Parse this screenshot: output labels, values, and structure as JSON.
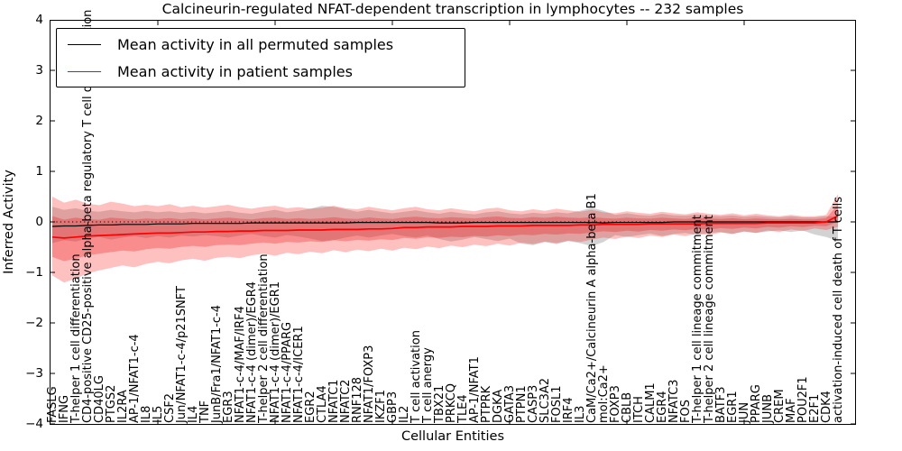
{
  "title": "Calcineurin-regulated NFAT-dependent transcription in lymphocytes -- 232 samples",
  "axes": {
    "ylabel": "Inferred Activity",
    "xlabel": "Cellular Entities",
    "ytick_labels": [
      "4",
      "3",
      "2",
      "1",
      "0",
      "−1",
      "−2",
      "−3",
      "−4"
    ]
  },
  "legend": {
    "entries": [
      {
        "label": "Mean activity in all permuted samples",
        "color": "#000000"
      },
      {
        "label": "Mean activity in patient samples",
        "color": "#ff0000"
      }
    ]
  },
  "chart_data": {
    "type": "line",
    "title": "Calcineurin-regulated NFAT-dependent transcription in lymphocytes -- 232 samples",
    "xlabel": "Cellular Entities",
    "ylabel": "Inferred Activity",
    "ylim": [
      -4,
      4
    ],
    "yticks": [
      4,
      3,
      2,
      1,
      0,
      -1,
      -2,
      -3,
      -4
    ],
    "x_major_tick_indices": [
      9,
      19,
      29,
      39,
      49,
      59
    ],
    "grid": false,
    "legend_position": "upper left",
    "zero_line": {
      "value": 0,
      "style": "dotted",
      "color": "#000000"
    },
    "inner_band_scale": 0.52,
    "categories": [
      "FASLG",
      "IFNG",
      "T-helper 1 cell differentiation",
      "CD4-positive CD25-positive alpha-beta regulatory T cell differentiation",
      "CD40LG",
      "PTGS2",
      "IL2RA",
      "AP-1/NFAT1-c-4",
      "IL8",
      "IL5",
      "CSF2",
      "Jun/NFAT1-c-4/p21SNFT",
      "IL4",
      "TNF",
      "JunB/Fra1/NFAT1-c-4",
      "EGR3",
      "NFAT1-c-4/MAF/IRF4",
      "NFAT1-c-4 (dimer)/EGR4",
      "T-helper 2 cell differentiation",
      "NFAT1-c-4 (dimer)/EGR1",
      "NFAT1-c-4/PPARG",
      "NFAT1-c-4/ICER1",
      "EGR2",
      "CTLA4",
      "NFATC1",
      "NFATC2",
      "RNF128",
      "NFAT1/FOXP3",
      "IKZF1",
      "GBP3",
      "IL2",
      "T cell activation",
      "T cell anergy",
      "TBX21",
      "PRKCQ",
      "TLE4",
      "AP-1/NFAT1",
      "PTPRK",
      "DGKA",
      "GATA3",
      "PTPN1",
      "CASP3",
      "SLC3A2",
      "FOSL1",
      "IRF4",
      "IL3",
      "CaM/Ca2+/Calcineurin A alpha-beta B1",
      "mol:Ca2+",
      "FOXP3",
      "CBLB",
      "ITCH",
      "CALM1",
      "EGR4",
      "NFATC3",
      "FOS",
      "T-helper 1 cell lineage commitment",
      "T-helper 2 cell lineage commitment",
      "BATF3",
      "EGR1",
      "JUN",
      "PPARG",
      "JUNB",
      "CREM",
      "MAF",
      "POU2F1",
      "E2F1",
      "CDK4",
      "activation-induced cell death of T cells"
    ],
    "series": [
      {
        "name": "Mean activity in all permuted samples",
        "color": "#000000",
        "values": [
          -0.09,
          -0.08,
          -0.08,
          -0.07,
          -0.06,
          -0.06,
          -0.05,
          -0.05,
          -0.05,
          -0.04,
          -0.04,
          -0.04,
          -0.03,
          -0.03,
          -0.03,
          -0.03,
          -0.03,
          -0.02,
          -0.02,
          -0.02,
          -0.02,
          -0.02,
          -0.02,
          -0.02,
          -0.02,
          -0.02,
          -0.01,
          -0.01,
          -0.01,
          -0.01,
          -0.01,
          -0.01,
          -0.01,
          -0.02,
          -0.02,
          -0.02,
          -0.01,
          -0.01,
          -0.01,
          -0.01,
          -0.01,
          -0.01,
          -0.01,
          -0.01,
          -0.01,
          -0.01,
          -0.01,
          -0.02,
          -0.01,
          -0.01,
          -0.01,
          -0.01,
          -0.01,
          0.0,
          0.0,
          0.0,
          0.0,
          0.0,
          0.0,
          0.0,
          0.0,
          0.0,
          0.0,
          0.0,
          0.0,
          0.0,
          0.0,
          0.0
        ]
      },
      {
        "name": "Mean activity in patient samples",
        "color": "#ff0000",
        "values": [
          -0.3,
          -0.32,
          -0.3,
          -0.28,
          -0.27,
          -0.26,
          -0.25,
          -0.24,
          -0.23,
          -0.22,
          -0.22,
          -0.21,
          -0.2,
          -0.2,
          -0.19,
          -0.19,
          -0.18,
          -0.18,
          -0.17,
          -0.17,
          -0.17,
          -0.16,
          -0.16,
          -0.16,
          -0.15,
          -0.15,
          -0.15,
          -0.14,
          -0.14,
          -0.13,
          -0.11,
          -0.11,
          -0.1,
          -0.1,
          -0.1,
          -0.09,
          -0.09,
          -0.09,
          -0.08,
          -0.08,
          -0.08,
          -0.07,
          -0.07,
          -0.07,
          -0.07,
          -0.06,
          -0.06,
          -0.05,
          -0.05,
          -0.05,
          -0.05,
          -0.04,
          -0.04,
          -0.04,
          -0.04,
          -0.04,
          -0.03,
          -0.03,
          -0.03,
          -0.03,
          -0.03,
          -0.02,
          -0.02,
          -0.02,
          -0.02,
          -0.02,
          0.0,
          0.12
        ]
      }
    ],
    "bands": [
      {
        "name": "permuted samples range",
        "color": "rgba(128,128,128,0.35)",
        "upper": [
          0.3,
          0.24,
          0.27,
          0.22,
          0.2,
          0.24,
          0.21,
          0.19,
          0.22,
          0.19,
          0.21,
          0.18,
          0.2,
          0.17,
          0.19,
          0.22,
          0.18,
          0.16,
          0.2,
          0.24,
          0.19,
          0.22,
          0.26,
          0.32,
          0.3,
          0.25,
          0.2,
          0.24,
          0.2,
          0.17,
          0.2,
          0.23,
          0.19,
          0.16,
          0.2,
          0.17,
          0.15,
          0.19,
          0.21,
          0.17,
          0.15,
          0.18,
          0.16,
          0.19,
          0.17,
          0.22,
          0.28,
          0.22,
          0.14,
          0.17,
          0.14,
          0.12,
          0.16,
          0.13,
          0.12,
          0.15,
          0.12,
          0.11,
          0.13,
          0.1,
          0.12,
          0.1,
          0.09,
          0.11,
          0.09,
          0.09,
          0.11,
          0.1
        ],
        "lower": [
          -0.42,
          -0.36,
          -0.39,
          -0.33,
          -0.3,
          -0.35,
          -0.31,
          -0.28,
          -0.32,
          -0.28,
          -0.31,
          -0.27,
          -0.29,
          -0.26,
          -0.28,
          -0.31,
          -0.27,
          -0.24,
          -0.28,
          -0.31,
          -0.26,
          -0.29,
          -0.33,
          -0.38,
          -0.36,
          -0.31,
          -0.27,
          -0.31,
          -0.27,
          -0.24,
          -0.28,
          -0.31,
          -0.27,
          -0.34,
          -0.39,
          -0.35,
          -0.3,
          -0.34,
          -0.38,
          -0.33,
          -0.43,
          -0.46,
          -0.4,
          -0.44,
          -0.38,
          -0.42,
          -0.48,
          -0.4,
          -0.26,
          -0.3,
          -0.26,
          -0.23,
          -0.28,
          -0.24,
          -0.22,
          -0.26,
          -0.22,
          -0.2,
          -0.24,
          -0.19,
          -0.22,
          -0.19,
          -0.17,
          -0.2,
          -0.17,
          -0.25,
          -0.3,
          -0.38
        ]
      },
      {
        "name": "patient samples range",
        "color": "rgba(255,30,30,0.28)",
        "upper": [
          0.5,
          0.38,
          0.44,
          0.36,
          0.33,
          0.4,
          0.36,
          0.31,
          0.34,
          0.31,
          0.35,
          0.29,
          0.32,
          0.28,
          0.31,
          0.34,
          0.29,
          0.26,
          0.3,
          0.32,
          0.27,
          0.29,
          0.26,
          0.28,
          0.32,
          0.27,
          0.25,
          0.3,
          0.26,
          0.23,
          0.27,
          0.3,
          0.25,
          0.23,
          0.27,
          0.24,
          0.21,
          0.26,
          0.28,
          0.23,
          0.21,
          0.25,
          0.22,
          0.26,
          0.23,
          0.2,
          0.24,
          0.19,
          0.17,
          0.21,
          0.18,
          0.16,
          0.2,
          0.17,
          0.15,
          0.19,
          0.16,
          0.14,
          0.17,
          0.13,
          0.16,
          0.13,
          0.11,
          0.14,
          0.11,
          0.11,
          0.14,
          0.55
        ],
        "lower": [
          -1.06,
          -1.2,
          -1.12,
          -1.02,
          -0.96,
          -0.91,
          -0.86,
          -0.9,
          -0.83,
          -0.79,
          -0.82,
          -0.76,
          -0.73,
          -0.77,
          -0.71,
          -0.69,
          -0.72,
          -0.66,
          -0.63,
          -0.67,
          -0.61,
          -0.64,
          -0.59,
          -0.62,
          -0.56,
          -0.6,
          -0.55,
          -0.58,
          -0.53,
          -0.57,
          -0.51,
          -0.54,
          -0.49,
          -0.52,
          -0.47,
          -0.5,
          -0.45,
          -0.48,
          -0.43,
          -0.47,
          -0.41,
          -0.44,
          -0.39,
          -0.42,
          -0.37,
          -0.4,
          -0.35,
          -0.31,
          -0.34,
          -0.29,
          -0.32,
          -0.27,
          -0.3,
          -0.25,
          -0.28,
          -0.23,
          -0.26,
          -0.21,
          -0.24,
          -0.19,
          -0.22,
          -0.17,
          -0.2,
          -0.15,
          -0.18,
          -0.13,
          -0.16,
          -0.1
        ]
      }
    ]
  }
}
